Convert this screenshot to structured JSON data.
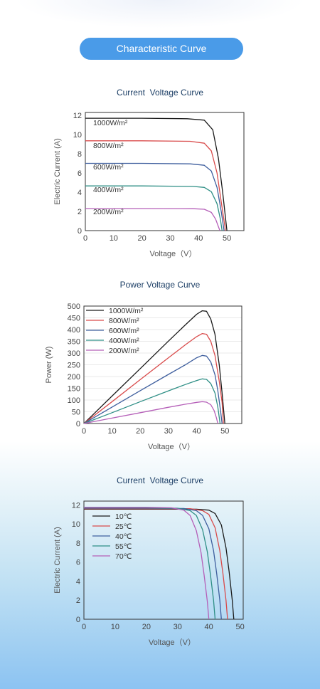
{
  "header": {
    "title": "Characteristic Curve"
  },
  "chart_data": [
    {
      "type": "line",
      "title": "Current  Voltage Curve",
      "xlabel": "Voltage（V）",
      "ylabel": "Electric Current (A)",
      "xlim": [
        0,
        56
      ],
      "ylim": [
        0,
        12.3
      ],
      "xticks": [
        0,
        10,
        20,
        30,
        40,
        50
      ],
      "yticks": [
        0,
        2,
        4,
        6,
        8,
        10,
        12
      ],
      "legend_style": "inline",
      "series": [
        {
          "name": "1000W/m²",
          "color": "#1a1a1a",
          "points": [
            [
              0,
              11.7
            ],
            [
              20,
              11.7
            ],
            [
              36,
              11.65
            ],
            [
              42,
              11.5
            ],
            [
              45,
              10.5
            ],
            [
              47,
              7.5
            ],
            [
              48.5,
              4
            ],
            [
              50,
              0
            ]
          ]
        },
        {
          "name": "800W/m²",
          "color": "#d94b4b",
          "points": [
            [
              0,
              9.35
            ],
            [
              20,
              9.35
            ],
            [
              37,
              9.3
            ],
            [
              42,
              9.1
            ],
            [
              44.5,
              8.3
            ],
            [
              46.5,
              6
            ],
            [
              48,
              3
            ],
            [
              49.5,
              0
            ]
          ]
        },
        {
          "name": "600W/m²",
          "color": "#3f5f9e",
          "points": [
            [
              0,
              7.0
            ],
            [
              20,
              7.0
            ],
            [
              37,
              6.95
            ],
            [
              42,
              6.8
            ],
            [
              44.5,
              6.2
            ],
            [
              46.5,
              4.5
            ],
            [
              48,
              2
            ],
            [
              49,
              0
            ]
          ]
        },
        {
          "name": "400W/m²",
          "color": "#2f8f86",
          "points": [
            [
              0,
              4.65
            ],
            [
              20,
              4.65
            ],
            [
              38,
              4.6
            ],
            [
              42,
              4.5
            ],
            [
              44.5,
              4.05
            ],
            [
              46.5,
              2.8
            ],
            [
              47.7,
              1.2
            ],
            [
              48.3,
              0
            ]
          ]
        },
        {
          "name": "200W/m²",
          "color": "#b55fb8",
          "points": [
            [
              0,
              2.3
            ],
            [
              20,
              2.3
            ],
            [
              38,
              2.28
            ],
            [
              42,
              2.22
            ],
            [
              44.5,
              1.9
            ],
            [
              46,
              1.2
            ],
            [
              47,
              0.4
            ],
            [
              47.5,
              0
            ]
          ]
        }
      ]
    },
    {
      "type": "line",
      "title": "Power Voltage Curve",
      "xlabel": "Voltage（V）",
      "ylabel": "Power (W)",
      "xlim": [
        0,
        56
      ],
      "ylim": [
        0,
        500
      ],
      "xticks": [
        0,
        10,
        20,
        30,
        40,
        50
      ],
      "yticks": [
        0,
        50,
        100,
        150,
        200,
        250,
        300,
        350,
        400,
        450,
        500
      ],
      "legend_style": "box",
      "series": [
        {
          "name": "1000W/m²",
          "color": "#1a1a1a",
          "points": [
            [
              0,
              0
            ],
            [
              10,
              117
            ],
            [
              20,
              234
            ],
            [
              30,
              351
            ],
            [
              36,
              420
            ],
            [
              40,
              465
            ],
            [
              42,
              480
            ],
            [
              43.5,
              478
            ],
            [
              45,
              445
            ],
            [
              46.5,
              380
            ],
            [
              48,
              250
            ],
            [
              49,
              130
            ],
            [
              50,
              0
            ]
          ]
        },
        {
          "name": "800W/m²",
          "color": "#d94b4b",
          "points": [
            [
              0,
              0
            ],
            [
              10,
              93
            ],
            [
              20,
              187
            ],
            [
              30,
              280
            ],
            [
              36,
              335
            ],
            [
              40,
              370
            ],
            [
              42,
              383
            ],
            [
              43.5,
              380
            ],
            [
              45,
              350
            ],
            [
              46.5,
              290
            ],
            [
              48,
              180
            ],
            [
              49,
              90
            ],
            [
              49.5,
              0
            ]
          ]
        },
        {
          "name": "600W/m²",
          "color": "#3f5f9e",
          "points": [
            [
              0,
              0
            ],
            [
              10,
              70
            ],
            [
              20,
              140
            ],
            [
              30,
              209
            ],
            [
              36,
              250
            ],
            [
              40,
              280
            ],
            [
              42,
              290
            ],
            [
              43.5,
              287
            ],
            [
              45,
              262
            ],
            [
              46.5,
              208
            ],
            [
              47.5,
              140
            ],
            [
              48.5,
              50
            ],
            [
              49,
              0
            ]
          ]
        },
        {
          "name": "400W/m²",
          "color": "#2f8f86",
          "points": [
            [
              0,
              0
            ],
            [
              10,
              46
            ],
            [
              20,
              93
            ],
            [
              30,
              139
            ],
            [
              36,
              166
            ],
            [
              40,
              183
            ],
            [
              42,
              190
            ],
            [
              43.5,
              188
            ],
            [
              45,
              170
            ],
            [
              46.5,
              130
            ],
            [
              47.5,
              70
            ],
            [
              48.3,
              0
            ]
          ]
        },
        {
          "name": "200W/m²",
          "color": "#b55fb8",
          "points": [
            [
              0,
              0
            ],
            [
              10,
              23
            ],
            [
              20,
              46
            ],
            [
              30,
              69
            ],
            [
              36,
              82
            ],
            [
              40,
              90
            ],
            [
              42,
              93
            ],
            [
              43.5,
              91
            ],
            [
              45,
              80
            ],
            [
              46.2,
              55
            ],
            [
              47,
              25
            ],
            [
              47.5,
              0
            ]
          ]
        }
      ]
    },
    {
      "type": "line",
      "title": "Current  Voltage Curve",
      "xlabel": "Voltage（V）",
      "ylabel": "Electric Current (A)",
      "xlim": [
        0,
        51
      ],
      "ylim": [
        0,
        12.4
      ],
      "xticks": [
        0,
        10,
        20,
        30,
        40,
        50
      ],
      "yticks": [
        0,
        2,
        4,
        6,
        8,
        10,
        12
      ],
      "legend_style": "box",
      "series": [
        {
          "name": "10℃",
          "color": "#1a1a1a",
          "points": [
            [
              0,
              11.55
            ],
            [
              20,
              11.55
            ],
            [
              36,
              11.55
            ],
            [
              40,
              11.45
            ],
            [
              42,
              11.1
            ],
            [
              44,
              9.9
            ],
            [
              45.5,
              7.5
            ],
            [
              46.5,
              5
            ],
            [
              47.5,
              2
            ],
            [
              48,
              0
            ]
          ]
        },
        {
          "name": "25℃",
          "color": "#d94b4b",
          "points": [
            [
              0,
              11.6
            ],
            [
              20,
              11.6
            ],
            [
              34,
              11.6
            ],
            [
              38,
              11.4
            ],
            [
              40,
              11.0
            ],
            [
              42,
              9.6
            ],
            [
              43.5,
              7.2
            ],
            [
              44.5,
              4.8
            ],
            [
              45.5,
              2
            ],
            [
              46,
              0
            ]
          ]
        },
        {
          "name": "40℃",
          "color": "#3f5f9e",
          "points": [
            [
              0,
              11.65
            ],
            [
              20,
              11.65
            ],
            [
              32,
              11.62
            ],
            [
              36,
              11.4
            ],
            [
              38,
              10.9
            ],
            [
              40,
              9.5
            ],
            [
              41.5,
              7.2
            ],
            [
              42.5,
              4.8
            ],
            [
              43.5,
              2
            ],
            [
              44,
              0
            ]
          ]
        },
        {
          "name": "55℃",
          "color": "#2f8f86",
          "points": [
            [
              0,
              11.7
            ],
            [
              20,
              11.7
            ],
            [
              30,
              11.65
            ],
            [
              34,
              11.4
            ],
            [
              36,
              10.9
            ],
            [
              38,
              9.4
            ],
            [
              39.5,
              7.1
            ],
            [
              40.5,
              4.7
            ],
            [
              41.5,
              2
            ],
            [
              42,
              0
            ]
          ]
        },
        {
          "name": "70℃",
          "color": "#b55fb8",
          "points": [
            [
              0,
              11.75
            ],
            [
              20,
              11.75
            ],
            [
              28,
              11.7
            ],
            [
              32,
              11.45
            ],
            [
              34,
              10.9
            ],
            [
              36,
              9.3
            ],
            [
              37.5,
              7
            ],
            [
              38.5,
              4.6
            ],
            [
              39.5,
              1.9
            ],
            [
              40,
              0
            ]
          ]
        }
      ]
    }
  ]
}
